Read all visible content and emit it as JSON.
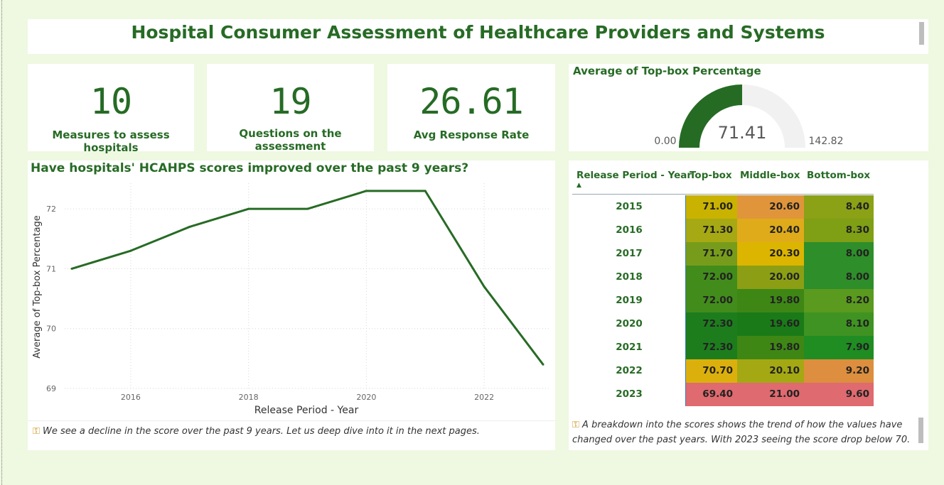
{
  "header": {
    "title": "Hospital Consumer Assessment of Healthcare Providers and Systems"
  },
  "kpis": [
    {
      "value": "10",
      "label": "Measures to assess hospitals"
    },
    {
      "value": "19",
      "label": "Questions on the assessment"
    },
    {
      "value": "26.61",
      "label": "Avg Response Rate"
    }
  ],
  "gauge": {
    "title": "Average of Top-box Percentage",
    "value": 71.41,
    "value_label": "71.41",
    "min": 0,
    "min_label": "0.00",
    "max": 142.82,
    "max_label": "142.82",
    "fill_color": "#256b24",
    "track_color": "#f1f1f1"
  },
  "line_chart": {
    "title": "Have hospitals' HCAHPS scores improved over the past 9 years?",
    "note": "We see a decline in the score over the past 9 years. Let us deep dive into it in the next pages."
  },
  "matrix": {
    "headers": [
      "Release Period - Year",
      "Top-box",
      "Middle-box",
      "Bottom-box"
    ],
    "sort_indicator": "▲",
    "rows": [
      {
        "year": "2015",
        "top": "71.00",
        "middle": "20.60",
        "bottom": "8.40",
        "colors": [
          "#c9b200",
          "#e0953a",
          "#8ba116"
        ]
      },
      {
        "year": "2016",
        "top": "71.30",
        "middle": "20.40",
        "bottom": "8.30",
        "colors": [
          "#a6a913",
          "#dfab1b",
          "#7f9f15"
        ]
      },
      {
        "year": "2017",
        "top": "71.70",
        "middle": "20.30",
        "bottom": "8.00",
        "colors": [
          "#779c1b",
          "#dcb500",
          "#2e8e2a"
        ]
      },
      {
        "year": "2018",
        "top": "72.00",
        "middle": "20.00",
        "bottom": "8.00",
        "colors": [
          "#428c1b",
          "#8c9f14",
          "#2e8e2a"
        ]
      },
      {
        "year": "2019",
        "top": "72.00",
        "middle": "19.80",
        "bottom": "8.20",
        "colors": [
          "#428c1b",
          "#3e8715",
          "#5a9a1e"
        ]
      },
      {
        "year": "2020",
        "top": "72.30",
        "middle": "19.60",
        "bottom": "8.10",
        "colors": [
          "#1d7d1d",
          "#1a7a17",
          "#3f9322"
        ]
      },
      {
        "year": "2021",
        "top": "72.30",
        "middle": "19.80",
        "bottom": "7.90",
        "colors": [
          "#1d7d1d",
          "#3e8715",
          "#1f8d22"
        ]
      },
      {
        "year": "2022",
        "top": "70.70",
        "middle": "20.10",
        "bottom": "9.20",
        "colors": [
          "#dcb00c",
          "#a4a813",
          "#dd8e3e"
        ]
      },
      {
        "year": "2023",
        "top": "69.40",
        "middle": "21.00",
        "bottom": "9.60",
        "colors": [
          "#df6a6f",
          "#df6a6f",
          "#df6a6f"
        ]
      }
    ],
    "note": "A breakdown into the scores shows the trend of how the values have changed over the past years. With 2023 seeing the score drop below 70."
  },
  "icons": {
    "note_icon": "key-icon"
  },
  "chart_data": {
    "type": "line",
    "title": "Have hospitals' HCAHPS scores improved over the past 9 years?",
    "xlabel": "Release Period - Year",
    "ylabel": "Average of Top-box Percentage",
    "x": [
      2015,
      2016,
      2017,
      2018,
      2019,
      2020,
      2021,
      2022,
      2023
    ],
    "series": [
      {
        "values": [
          71.0,
          71.3,
          71.7,
          72.0,
          72.0,
          72.3,
          72.3,
          70.7,
          69.4
        ],
        "color": "#276b25"
      }
    ],
    "x_ticks": [
      "2016",
      "2018",
      "2020",
      "2022"
    ],
    "y_ticks": [
      "69",
      "70",
      "71",
      "72"
    ],
    "xlim": [
      2015,
      2023
    ],
    "ylim": [
      69,
      72.5
    ],
    "grid": true,
    "legend": "none"
  }
}
